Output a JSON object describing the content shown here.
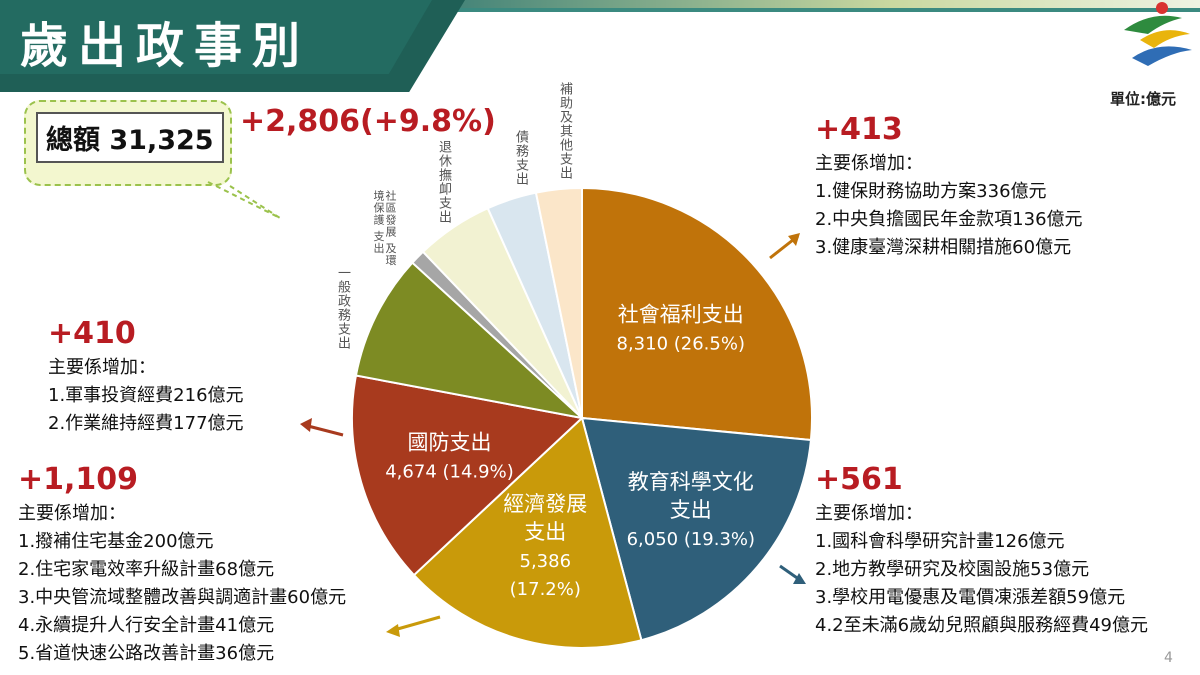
{
  "title": "歲出政事別",
  "unit_label": "單位:億元",
  "page_number": "4",
  "total": {
    "label": "總額 31,325",
    "change": "+2,806(+9.8%)"
  },
  "chart_data": {
    "type": "pie",
    "total": 31325,
    "slices": [
      {
        "name": "社會福利支出",
        "value": 8310,
        "percent": "26.5%",
        "label_value": "8,310 (26.5%)",
        "color": "#c0730a"
      },
      {
        "name": "教育科學文化支出",
        "value": 6050,
        "percent": "19.3%",
        "label_value": "6,050 (19.3%)",
        "color": "#2f5f7a"
      },
      {
        "name": "經濟發展支出",
        "value": 5386,
        "percent": "17.2%",
        "label_value": "5,386 (17.2%)",
        "color": "#c99a0a"
      },
      {
        "name": "國防支出",
        "value": 4674,
        "percent": "14.9%",
        "label_value": "4,674 (14.9%)",
        "color": "#a83a1e"
      },
      {
        "name": "一般政務支出",
        "value": 2770,
        "color": "#7d8b23"
      },
      {
        "name": "社區發展及環境保護支出",
        "value": 330,
        "color": "#a6a6a6"
      },
      {
        "name": "退休撫卹支出",
        "value": 1700,
        "color": "#f2f2d2"
      },
      {
        "name": "債務支出",
        "value": 1100,
        "color": "#d9e6ef"
      },
      {
        "name": "補助及其他支出",
        "value": 1005,
        "color": "#fbe6c9"
      }
    ],
    "inner_labels": {
      "social": [
        "社會福利支出",
        "8,310 (26.5%)"
      ],
      "education": [
        "教育科學文化",
        "支出",
        "6,050 (19.3%)"
      ],
      "economic": [
        "經濟發展",
        "支出",
        "5,386",
        "(17.2%)"
      ],
      "defense": [
        "國防支出",
        "4,674 (14.9%)"
      ]
    },
    "outer_labels": {
      "general": "一般政務支出",
      "community": "社區發展及環境保護支出",
      "community_lines": [
        "社區發展",
        "及環境保護",
        "支出"
      ],
      "pension": "退休撫卹支出",
      "debt": "債務支出",
      "subsidy": "補助及其他支出"
    }
  },
  "notes": {
    "social": {
      "increase": "+413",
      "heading": "主要係增加：",
      "items": [
        "1.健保財務協助方案336億元",
        "2.中央負擔國民年金款項136億元",
        "3.健康臺灣深耕相關措施60億元"
      ]
    },
    "defense": {
      "increase": "+410",
      "heading": "主要係增加：",
      "items": [
        "1.軍事投資經費216億元",
        "2.作業維持經費177億元"
      ]
    },
    "economic": {
      "increase": "+1,109",
      "heading": "主要係增加：",
      "items": [
        "1.撥補住宅基金200億元",
        "2.住宅家電效率升級計畫68億元",
        "3.中央管流域整體改善與調適計畫60億元",
        "4.永續提升人行安全計畫41億元",
        "5.省道快速公路改善計畫36億元"
      ]
    },
    "education": {
      "increase": "+561",
      "heading": "主要係增加：",
      "items": [
        "1.國科會科學研究計畫126億元",
        "2.地方教學研究及校園設施53億元",
        "3.學校用電優惠及電價凍漲差額59億元",
        "4.2至未滿6歲幼兒照顧與服務經費49億元"
      ]
    }
  },
  "colors": {
    "title_bg": "#236b61",
    "increase_red": "#b81c22",
    "bubble_fill": "#f3f7cf",
    "bubble_border": "#9bc24c"
  }
}
